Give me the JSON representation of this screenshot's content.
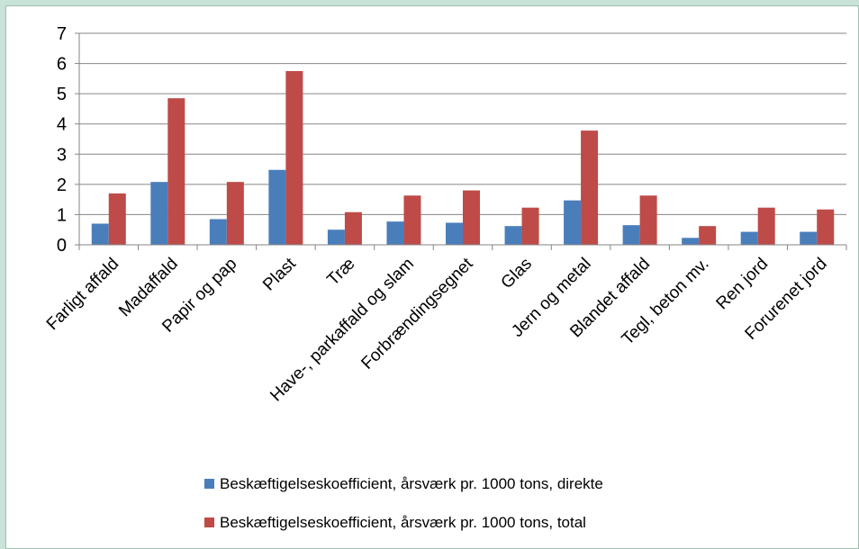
{
  "chart_data": {
    "type": "bar",
    "title": "",
    "xlabel": "",
    "ylabel": "",
    "ylim": [
      0,
      7
    ],
    "yticks": [
      0,
      1,
      2,
      3,
      4,
      5,
      6,
      7
    ],
    "grid": true,
    "legend_position": "bottom",
    "categories": [
      "Farligt affald",
      "Madaffald",
      "Papir og pap",
      "Plast",
      "Træ",
      "Have-, parkaffald og slam",
      "Forbrændingsegnet",
      "Glas",
      "Jern og metal",
      "Blandet affald",
      "Tegl, beton mv.",
      "Ren jord",
      "Forurenet jord"
    ],
    "series": [
      {
        "name": "Beskæftigelseskoefficient, årsværk pr. 1000 tons, direkte",
        "color": "#4a7ebb",
        "values": [
          0.7,
          2.08,
          0.85,
          2.48,
          0.5,
          0.77,
          0.73,
          0.62,
          1.47,
          0.65,
          0.23,
          0.43,
          0.43
        ]
      },
      {
        "name": "Beskæftigelseskoefficient, årsværk pr. 1000 tons, total",
        "color": "#be4b48",
        "values": [
          1.7,
          4.85,
          2.08,
          5.75,
          1.08,
          1.63,
          1.8,
          1.23,
          3.78,
          1.63,
          0.62,
          1.23,
          1.17
        ]
      }
    ]
  }
}
